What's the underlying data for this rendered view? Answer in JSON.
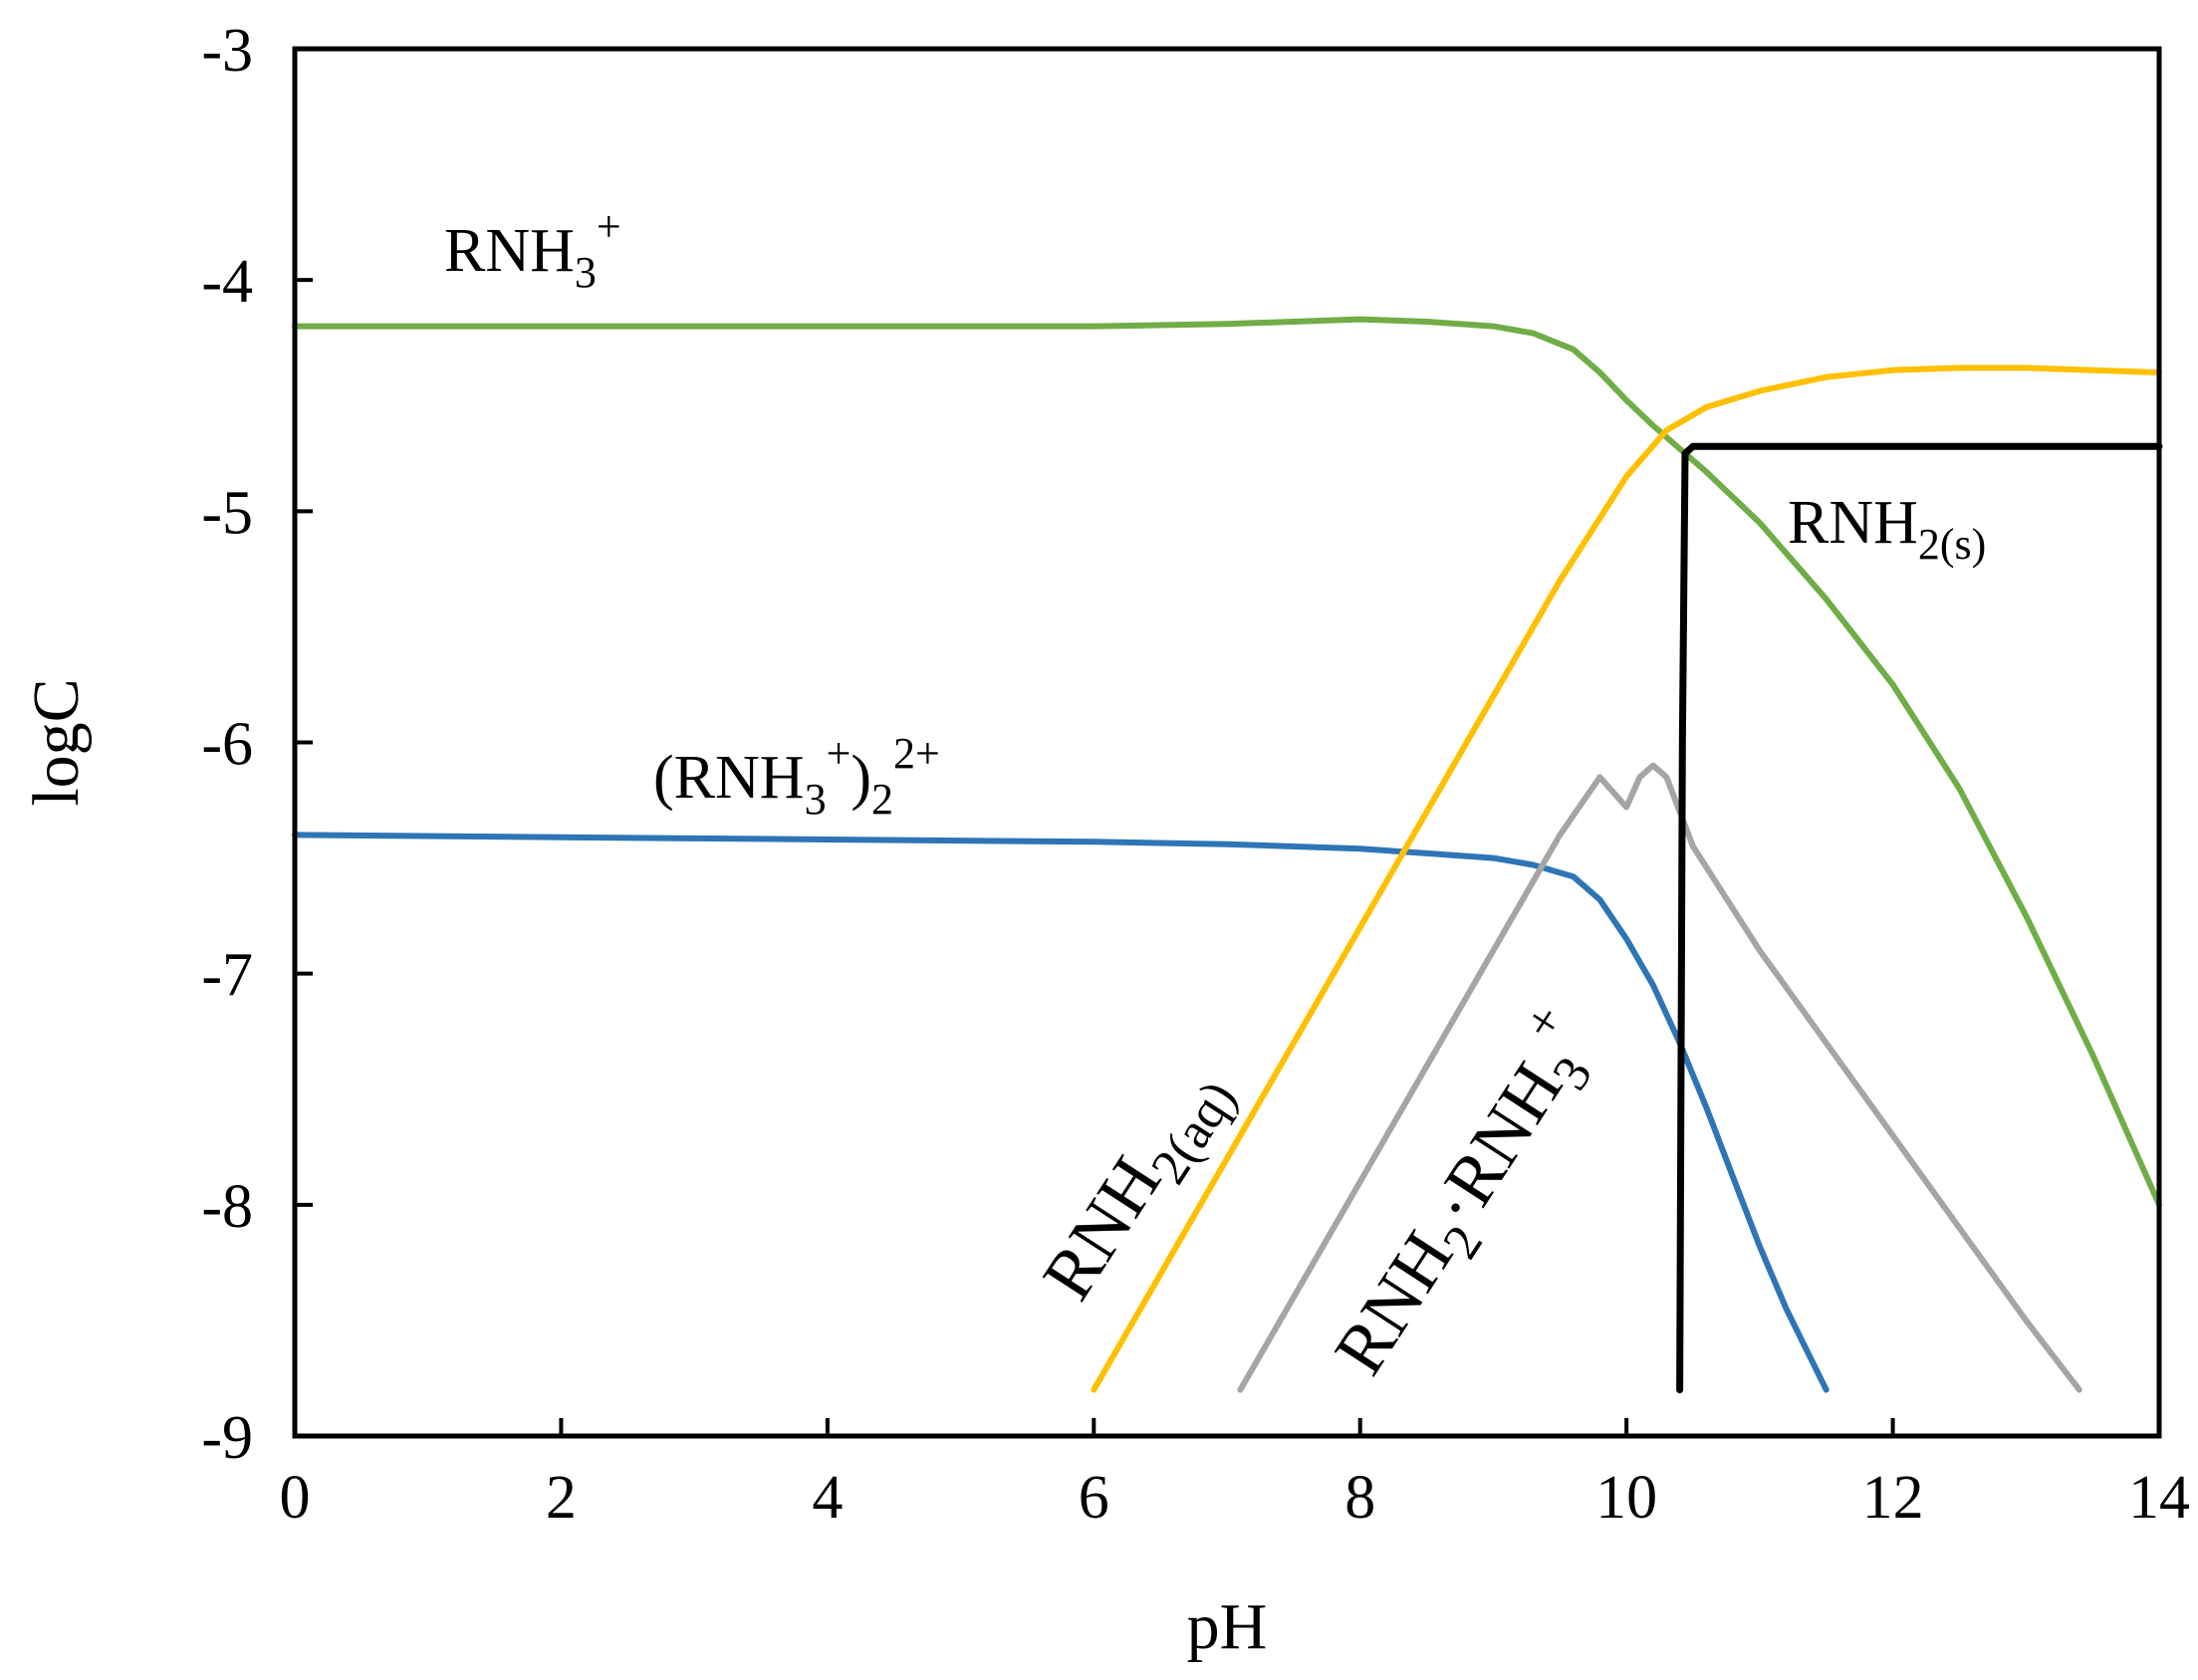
{
  "chart_data": {
    "type": "line",
    "title": "",
    "xlabel": "pH",
    "ylabel": "logC",
    "xlim": [
      0,
      14
    ],
    "ylim": [
      -9,
      -3
    ],
    "xticks": [
      0,
      2,
      4,
      6,
      8,
      10,
      12,
      14
    ],
    "yticks": [
      -9,
      -8,
      -7,
      -6,
      -5,
      -4,
      -3
    ],
    "grid": false,
    "legend": "none",
    "series": [
      {
        "name": "RNH3+",
        "color": "#70ad47",
        "x": [
          0,
          2,
          4,
          6,
          7,
          8,
          8.5,
          9,
          9.3,
          9.6,
          9.8,
          10,
          10.2,
          10.4,
          10.6,
          11,
          11.5,
          12,
          12.5,
          13,
          13.5,
          14
        ],
        "y": [
          -4.2,
          -4.2,
          -4.2,
          -4.2,
          -4.19,
          -4.17,
          -4.18,
          -4.2,
          -4.23,
          -4.3,
          -4.4,
          -4.52,
          -4.63,
          -4.73,
          -4.83,
          -5.05,
          -5.38,
          -5.75,
          -6.2,
          -6.75,
          -7.35,
          -8.0
        ]
      },
      {
        "name": "(RNH3+)2 2+",
        "color": "#2e75b6",
        "x": [
          0,
          2,
          4,
          6,
          7,
          8,
          8.5,
          9,
          9.3,
          9.6,
          9.8,
          10,
          10.2,
          10.4,
          10.6,
          10.8,
          11,
          11.2,
          11.5
        ],
        "y": [
          -6.4,
          -6.41,
          -6.42,
          -6.43,
          -6.44,
          -6.46,
          -6.48,
          -6.5,
          -6.53,
          -6.58,
          -6.68,
          -6.85,
          -7.05,
          -7.3,
          -7.58,
          -7.88,
          -8.18,
          -8.45,
          -8.8
        ]
      },
      {
        "name": "RNH2(aq)",
        "color": "#ffc000",
        "x": [
          6,
          7,
          8,
          8.5,
          9,
          9.5,
          10,
          10.3,
          10.6,
          11,
          11.5,
          12,
          12.5,
          13,
          13.5,
          14
        ],
        "y": [
          -8.8,
          -7.8,
          -6.8,
          -6.3,
          -5.8,
          -5.3,
          -4.85,
          -4.65,
          -4.55,
          -4.48,
          -4.42,
          -4.39,
          -4.38,
          -4.38,
          -4.39,
          -4.4
        ]
      },
      {
        "name": "RNH2·RNH3+",
        "color": "#a5a5a5",
        "x": [
          7.1,
          8,
          9,
          9.5,
          9.8,
          10.0,
          10.1,
          10.2,
          10.3,
          10.4,
          10.5,
          11,
          12,
          13,
          13.4
        ],
        "y": [
          -8.8,
          -7.9,
          -6.9,
          -6.4,
          -6.15,
          -6.28,
          -6.15,
          -6.1,
          -6.15,
          -6.3,
          -6.45,
          -6.9,
          -7.7,
          -8.5,
          -8.8
        ]
      },
      {
        "name": "RNH2(s)",
        "color": "#000000",
        "x": [
          10.4,
          10.42,
          10.44,
          10.5,
          14
        ],
        "y": [
          -8.8,
          -6.0,
          -4.75,
          -4.72,
          -4.72
        ]
      }
    ],
    "annotations": [
      {
        "text": "RNH",
        "sub": "3",
        "sup": "+"
      },
      {
        "text": "(RNH",
        "sub": "3",
        "sup": "+",
        "after": ")",
        "sub2": "2",
        "sup2": "2+"
      },
      {
        "text": "RNH",
        "sub": "2(aq)"
      },
      {
        "text": "RNH",
        "sub": "2",
        "mid": "·RNH",
        "sub2": "3",
        "sup2": "+"
      },
      {
        "text": "RNH",
        "sub": "2(s)"
      }
    ]
  }
}
